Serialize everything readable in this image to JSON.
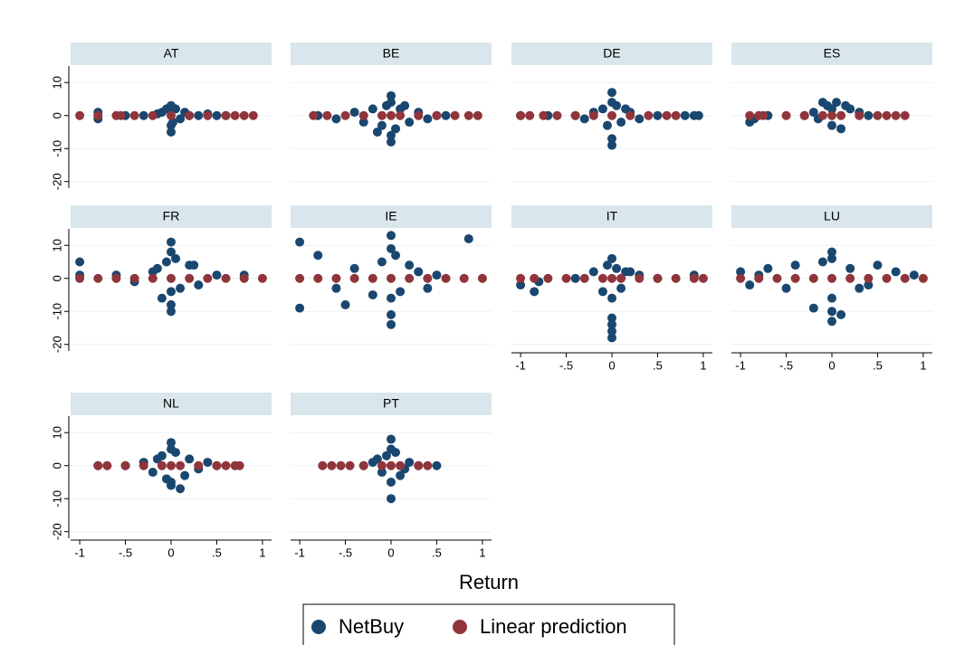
{
  "chart_data": {
    "type": "scatter",
    "xlabel": "Return",
    "series": [
      {
        "name": "NetBuy",
        "color": "#1a476f"
      },
      {
        "name": "Linear prediction",
        "color": "#90353b"
      }
    ],
    "xlim": [
      -1.1,
      1.1
    ],
    "ylim": [
      -22,
      15
    ],
    "xticks": [
      -1,
      {
        "value": -0.5,
        "label": "-.5"
      },
      0,
      {
        "value": 0.5,
        "label": ".5"
      },
      1
    ],
    "yticks": [
      10,
      0,
      -10,
      -20
    ],
    "grid": true,
    "panels": [
      {
        "title": "AT",
        "series": [
          {
            "x": [
              -0.8,
              -0.5,
              -0.3,
              -0.15,
              -0.1,
              -0.05,
              0,
              0,
              0,
              0,
              0.02,
              0.05,
              0.1,
              0.15,
              0.2,
              0.3,
              0.4,
              0.5,
              0.6,
              -0.8
            ],
            "values": [
              1,
              0,
              0,
              0.5,
              1,
              2,
              3,
              -3,
              -5,
              1.5,
              -2,
              2,
              -1,
              1,
              0,
              0,
              0.5,
              0,
              0,
              -1
            ]
          },
          {
            "x": [
              -1,
              -0.8,
              -0.6,
              -0.55,
              -0.4,
              -0.2,
              0,
              0.2,
              0.4,
              0.6,
              0.7,
              0.8,
              0.9
            ],
            "values": [
              0,
              0,
              0,
              0,
              0,
              0,
              0,
              0,
              0,
              0,
              0,
              0,
              0
            ]
          }
        ]
      },
      {
        "title": "BE",
        "series": [
          {
            "x": [
              -0.8,
              -0.6,
              -0.4,
              -0.3,
              -0.2,
              -0.1,
              -0.05,
              0,
              0,
              0,
              0,
              0.05,
              0.1,
              0.2,
              0.3,
              0.4,
              0.5,
              0.6,
              -0.15,
              0.15
            ],
            "values": [
              0,
              -1,
              1,
              -2,
              2,
              -3,
              3,
              6,
              -6,
              -8,
              4,
              -4,
              2,
              -2,
              1,
              -1,
              0,
              0,
              -5,
              3
            ]
          },
          {
            "x": [
              -0.85,
              -0.7,
              -0.5,
              -0.3,
              -0.1,
              0,
              0.1,
              0.3,
              0.5,
              0.7,
              0.85,
              0.95
            ],
            "values": [
              0,
              0,
              0,
              0,
              0,
              0,
              0,
              0,
              0,
              0,
              0,
              0
            ]
          }
        ]
      },
      {
        "title": "DE",
        "series": [
          {
            "x": [
              -1,
              -0.7,
              -0.4,
              -0.2,
              -0.1,
              -0.05,
              0,
              0,
              0,
              0,
              0.05,
              0.1,
              0.2,
              0.3,
              0.5,
              0.8,
              0.9,
              0.95,
              -0.3,
              0.15
            ],
            "values": [
              0,
              0,
              0,
              1,
              2,
              -3,
              7,
              -7,
              -9,
              4,
              3,
              -2,
              1,
              -1,
              0,
              0,
              0,
              0,
              -1,
              2
            ]
          },
          {
            "x": [
              -1,
              -0.9,
              -0.75,
              -0.6,
              -0.4,
              -0.2,
              0,
              0.2,
              0.4,
              0.6,
              0.7
            ],
            "values": [
              0,
              0,
              0,
              0,
              0,
              0,
              0,
              0,
              0,
              0,
              0
            ]
          }
        ]
      },
      {
        "title": "ES",
        "series": [
          {
            "x": [
              -0.9,
              -0.85,
              -0.7,
              -0.3,
              -0.2,
              -0.1,
              -0.05,
              0,
              0,
              0.05,
              0.1,
              0.2,
              0.3,
              0.4,
              -0.15,
              0.15
            ],
            "values": [
              -2,
              -1,
              0,
              0,
              1,
              4,
              3,
              -3,
              2,
              4,
              -4,
              2,
              1,
              0,
              -1,
              3
            ]
          },
          {
            "x": [
              -0.9,
              -0.8,
              -0.75,
              -0.5,
              -0.3,
              -0.1,
              0,
              0.1,
              0.3,
              0.5,
              0.6,
              0.7,
              0.8
            ],
            "values": [
              0,
              0,
              0,
              0,
              0,
              0,
              0,
              0,
              0,
              0,
              0,
              0,
              0
            ]
          }
        ]
      },
      {
        "title": "FR",
        "series": [
          {
            "x": [
              -1,
              -1,
              -0.6,
              -0.4,
              -0.2,
              -0.1,
              -0.05,
              0,
              0,
              0,
              0,
              0,
              0.05,
              0.1,
              0.2,
              0.3,
              0.5,
              0.8,
              -0.15,
              0.25
            ],
            "values": [
              5,
              1,
              1,
              -1,
              2,
              -6,
              5,
              11,
              -10,
              -8,
              8,
              -4,
              6,
              -3,
              4,
              -2,
              1,
              1,
              3,
              4
            ]
          },
          {
            "x": [
              -1,
              -0.8,
              -0.6,
              -0.4,
              -0.2,
              0,
              0.2,
              0.4,
              0.6,
              0.8,
              1
            ],
            "values": [
              0,
              0,
              0,
              0,
              0,
              0,
              0,
              0,
              0,
              0,
              0
            ]
          }
        ]
      },
      {
        "title": "IE",
        "series": [
          {
            "x": [
              -1,
              -1,
              -0.8,
              -0.6,
              -0.4,
              -0.2,
              -0.1,
              0,
              0,
              0,
              0,
              0,
              0.05,
              0.1,
              0.2,
              0.3,
              0.5,
              0.85,
              -0.5,
              0.4
            ],
            "values": [
              11,
              -9,
              7,
              -3,
              3,
              -5,
              5,
              13,
              -14,
              -11,
              9,
              -6,
              7,
              -4,
              4,
              2,
              1,
              12,
              -8,
              -3
            ]
          },
          {
            "x": [
              -1,
              -0.8,
              -0.6,
              -0.4,
              -0.2,
              0,
              0.2,
              0.4,
              0.6,
              0.8,
              1
            ],
            "values": [
              0,
              0,
              0,
              0,
              0,
              0,
              0,
              0,
              0,
              0,
              0
            ]
          }
        ]
      },
      {
        "title": "IT",
        "series": [
          {
            "x": [
              -1,
              -0.85,
              -0.8,
              -0.4,
              -0.2,
              -0.1,
              -0.05,
              0,
              0,
              0,
              0,
              0,
              0.05,
              0.1,
              0.2,
              0.3,
              0.5,
              0.9,
              0,
              0.15
            ],
            "values": [
              -2,
              -4,
              -1,
              0,
              2,
              -4,
              4,
              6,
              -12,
              -16,
              -18,
              -14,
              3,
              -3,
              2,
              1,
              0,
              1,
              -6,
              2
            ]
          },
          {
            "x": [
              -1,
              -0.85,
              -0.7,
              -0.5,
              -0.3,
              -0.1,
              0,
              0.1,
              0.3,
              0.5,
              0.7,
              0.9,
              1
            ],
            "values": [
              0,
              0,
              0,
              0,
              0,
              0,
              0,
              0,
              0,
              0,
              0,
              0,
              0
            ]
          }
        ]
      },
      {
        "title": "LU",
        "series": [
          {
            "x": [
              -1,
              -0.9,
              -0.7,
              -0.5,
              -0.4,
              -0.2,
              -0.1,
              0,
              0,
              0,
              0,
              0,
              0.1,
              0.2,
              0.3,
              0.5,
              0.7,
              0.9,
              -0.8,
              0.4
            ],
            "values": [
              2,
              -2,
              3,
              -3,
              4,
              -9,
              5,
              8,
              -10,
              -13,
              6,
              -6,
              -11,
              3,
              -3,
              4,
              2,
              1,
              1,
              -2
            ]
          },
          {
            "x": [
              -1,
              -0.8,
              -0.6,
              -0.4,
              -0.2,
              0,
              0.2,
              0.4,
              0.6,
              0.8,
              1
            ],
            "values": [
              0,
              0,
              0,
              0,
              0,
              0,
              0,
              0,
              0,
              0,
              0
            ]
          }
        ]
      },
      {
        "title": "NL",
        "series": [
          {
            "x": [
              -0.8,
              -0.5,
              -0.3,
              -0.2,
              -0.1,
              -0.05,
              0,
              0,
              0,
              0,
              0.05,
              0.1,
              0.2,
              0.3,
              0.4,
              0.5,
              -0.15,
              0.15
            ],
            "values": [
              0,
              0,
              1,
              -2,
              3,
              -4,
              7,
              -6,
              5,
              -5,
              4,
              -7,
              2,
              -1,
              1,
              0,
              2,
              -3
            ]
          },
          {
            "x": [
              -0.8,
              -0.7,
              -0.5,
              -0.3,
              -0.1,
              0,
              0.1,
              0.3,
              0.5,
              0.6,
              0.7,
              0.75
            ],
            "values": [
              0,
              0,
              0,
              0,
              0,
              0,
              0,
              0,
              0,
              0,
              0,
              0
            ]
          }
        ]
      },
      {
        "title": "PT",
        "series": [
          {
            "x": [
              -0.3,
              -0.2,
              -0.1,
              -0.05,
              0,
              0,
              0,
              0,
              0.05,
              0.1,
              0.2,
              0.3,
              0.5,
              -0.15,
              0.15
            ],
            "values": [
              0,
              1,
              -2,
              3,
              8,
              -10,
              5,
              -5,
              4,
              -3,
              1,
              0,
              0,
              2,
              -1
            ]
          },
          {
            "x": [
              -0.75,
              -0.65,
              -0.55,
              -0.45,
              -0.3,
              -0.1,
              0,
              0.1,
              0.3,
              0.4
            ],
            "values": [
              0,
              0,
              0,
              0,
              0,
              0,
              0,
              0,
              0,
              0
            ]
          }
        ]
      }
    ]
  }
}
